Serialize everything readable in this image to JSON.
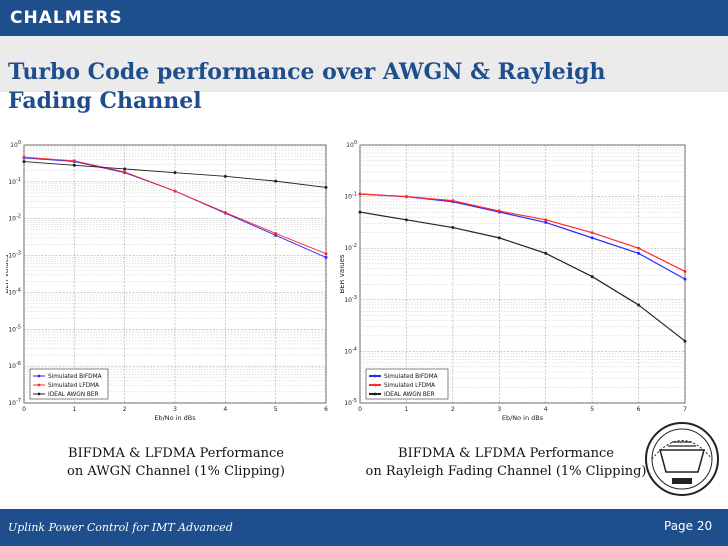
{
  "brand": "CHALMERS",
  "title": "Turbo Code performance over AWGN & Rayleigh Fading Channel",
  "captions": {
    "left_line1": "BIFDMA & LFDMA Performance",
    "left_line2": "on AWGN Channel (1% Clipping)",
    "right_line1": "BIFDMA & LFDMA Performance",
    "right_line2": "on Rayleigh Fading Channel (1% Clipping)"
  },
  "footer": {
    "text": "Uplink Power Control for IMT Advanced",
    "page_label": "Page",
    "page_number": "20"
  },
  "chart_data": [
    {
      "type": "line",
      "title": "",
      "xlabel": "Eb/No in dBs",
      "ylabel": "BER values",
      "xlim": [
        0,
        6
      ],
      "log_y": true,
      "ylim_exp": [
        -7,
        0
      ],
      "x_ticks": [
        "0",
        "1",
        "2",
        "3",
        "4",
        "5",
        "6"
      ],
      "y_ticks": [
        "10^0",
        "10^-1",
        "10^-2",
        "10^-3",
        "10^-4",
        "10^-5",
        "10^-6",
        "10^-7"
      ],
      "grid": true,
      "legend_position": "bottom-left",
      "x": [
        0,
        1,
        2,
        3,
        4,
        5,
        6
      ],
      "series": [
        {
          "name": "Simulated BIFDMA",
          "color": "#2a2aff",
          "y_exp": [
            -0.35,
            -0.45,
            -0.75,
            -1.25,
            -1.85,
            -2.45,
            -3.05
          ]
        },
        {
          "name": "Simulated LFDMA",
          "color": "#ff2a2a",
          "y_exp": [
            -0.33,
            -0.43,
            -0.73,
            -1.25,
            -1.83,
            -2.4,
            -2.95
          ]
        },
        {
          "name": "IDEAL AWGN BER",
          "color": "#222222",
          "y_exp": [
            -0.45,
            -0.55,
            -0.65,
            -0.75,
            -0.85,
            -0.98,
            -1.15
          ]
        }
      ]
    },
    {
      "type": "line",
      "title": "",
      "xlabel": "Eb/No in dBs",
      "ylabel": "BER values",
      "xlim": [
        0,
        7
      ],
      "log_y": true,
      "ylim_exp": [
        -5,
        0
      ],
      "x_ticks": [
        "0",
        "1",
        "2",
        "3",
        "4",
        "5",
        "6",
        "7"
      ],
      "y_ticks": [
        "10^0",
        "10^-1",
        "10^-2",
        "10^-3",
        "10^-4",
        "10^-5"
      ],
      "grid": true,
      "legend_position": "bottom-left",
      "x": [
        0,
        1,
        2,
        3,
        4,
        5,
        6,
        7
      ],
      "series": [
        {
          "name": "Simulated BIFDMA",
          "color": "#2a2aff",
          "y_exp": [
            -0.95,
            -1.0,
            -1.1,
            -1.3,
            -1.5,
            -1.8,
            -2.1,
            -2.6
          ]
        },
        {
          "name": "Simulated LFDMA",
          "color": "#ff2a2a",
          "y_exp": [
            -0.95,
            -1.0,
            -1.08,
            -1.28,
            -1.45,
            -1.7,
            -2.0,
            -2.45
          ]
        },
        {
          "name": "IDEAL AWGN BER",
          "color": "#222222",
          "y_exp": [
            -1.3,
            -1.45,
            -1.6,
            -1.8,
            -2.1,
            -2.55,
            -3.1,
            -3.8
          ]
        }
      ]
    }
  ]
}
